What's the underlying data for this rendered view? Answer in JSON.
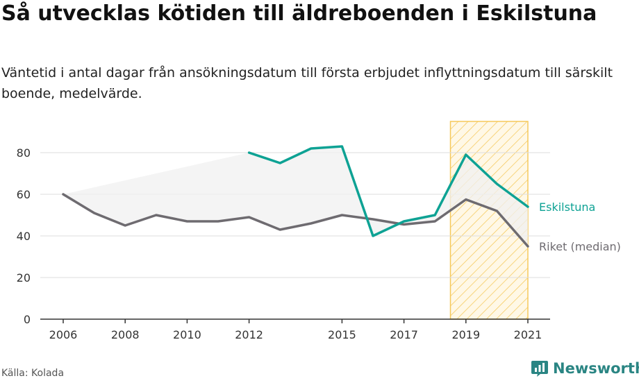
{
  "title": "Så utvecklas kötiden till äldreboenden i Eskilstuna",
  "subtitle": "Väntetid i antal dagar från ansökningsdatum till första erbjudet inflyttningsdatum till särskilt boende, medelvärde.",
  "source": "Källa: Kolada",
  "brand": {
    "name": "Newsworthy",
    "icon": "chart-bubble-icon",
    "color": "#2a8583"
  },
  "colors": {
    "eskilstuna": "#0ea294",
    "riket": "#6e6b70",
    "band_fill": "#f0f0f0",
    "highlight_stroke": "#f5c85a",
    "grid": "#dddddd",
    "axis": "#333333"
  },
  "chart_data": {
    "type": "line",
    "title": "Så utvecklas kötiden till äldreboenden i Eskilstuna",
    "xlabel": "",
    "ylabel": "",
    "xlim": [
      2006,
      2021
    ],
    "ylim": [
      0,
      90
    ],
    "grid": true,
    "x_ticks": [
      2006,
      2008,
      2010,
      2012,
      2015,
      2017,
      2019,
      2021
    ],
    "y_ticks": [
      0,
      20,
      40,
      60,
      80
    ],
    "legend": "inline labels at line ends",
    "series": [
      {
        "name": "Eskilstuna",
        "x": [
          2012,
          2013,
          2014,
          2015,
          2016,
          2017,
          2018,
          2019,
          2020,
          2021
        ],
        "values": [
          80,
          75,
          82,
          83,
          40,
          47,
          50,
          79,
          65,
          54
        ]
      },
      {
        "name": "Riket (median)",
        "x": [
          2006,
          2007,
          2008,
          2009,
          2010,
          2011,
          2012,
          2013,
          2014,
          2015,
          2016,
          2017,
          2018,
          2019,
          2020,
          2021
        ],
        "values": [
          60,
          51,
          45,
          50,
          47,
          47,
          49,
          43,
          46,
          50,
          48,
          45.5,
          47,
          57.5,
          52,
          35
        ]
      }
    ],
    "highlight_range": [
      2018.5,
      2021
    ]
  }
}
